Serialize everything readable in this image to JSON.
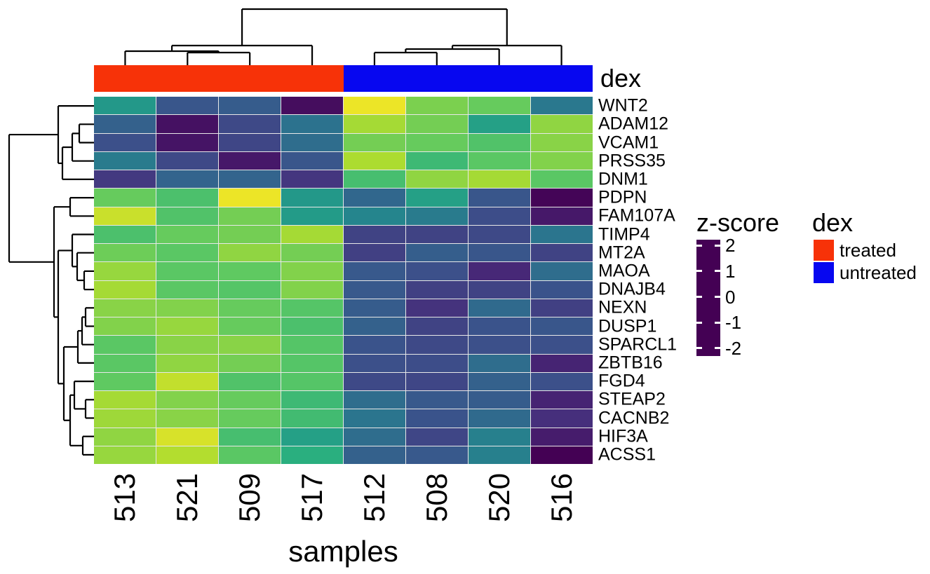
{
  "chart_data": {
    "type": "heatmap",
    "title": "",
    "xlabel": "samples",
    "x_categories": [
      "513",
      "521",
      "509",
      "517",
      "512",
      "508",
      "520",
      "516"
    ],
    "y_categories": [
      "WNT2",
      "ADAM12",
      "VCAM1",
      "PRSS35",
      "DNM1",
      "PDPN",
      "FAM107A",
      "TIMP4",
      "MT2A",
      "MAOA",
      "DNAJB4",
      "NEXN",
      "DUSP1",
      "SPARCL1",
      "ZBTB16",
      "FGD4",
      "STEAP2",
      "CACNB2",
      "HIF3A",
      "ACSS1"
    ],
    "values": [
      [
        0.1,
        -1.1,
        -1.0,
        -2.15,
        2.1,
        1.3,
        1.15,
        -0.5
      ],
      [
        -0.9,
        -2.1,
        -1.3,
        -0.6,
        1.6,
        1.25,
        0.25,
        1.45
      ],
      [
        -1.2,
        -2.05,
        -1.35,
        -0.7,
        1.25,
        1.15,
        0.95,
        1.4
      ],
      [
        -0.45,
        -1.3,
        -2.0,
        -1.1,
        1.65,
        0.75,
        1.05,
        1.35
      ],
      [
        -1.55,
        -0.85,
        -0.85,
        -1.6,
        0.85,
        1.45,
        1.6,
        1.05
      ],
      [
        1.15,
        0.9,
        2.1,
        0.1,
        -0.8,
        0.25,
        -1.1,
        -2.25
      ],
      [
        1.85,
        0.95,
        1.25,
        0.15,
        -0.25,
        -0.45,
        -1.25,
        -2.0
      ],
      [
        0.9,
        1.15,
        1.25,
        1.6,
        -1.4,
        -1.4,
        -1.3,
        -0.55
      ],
      [
        1.2,
        1.05,
        1.45,
        1.25,
        -1.45,
        -0.95,
        -1.1,
        -1.4
      ],
      [
        1.5,
        1.05,
        1.1,
        1.35,
        -1.05,
        -1.2,
        -1.8,
        -0.7
      ],
      [
        1.6,
        1.05,
        1.0,
        1.35,
        -1.05,
        -1.45,
        -1.4,
        -1.15
      ],
      [
        1.4,
        1.35,
        1.15,
        1.0,
        -1.0,
        -1.65,
        -0.75,
        -1.45
      ],
      [
        1.35,
        1.5,
        1.15,
        0.9,
        -0.9,
        -1.4,
        -1.15,
        -1.1
      ],
      [
        1.05,
        1.4,
        1.4,
        1.0,
        -1.15,
        -1.3,
        -1.2,
        -1.2
      ],
      [
        1.05,
        1.45,
        1.25,
        1.0,
        -1.2,
        -1.25,
        -0.7,
        -1.85
      ],
      [
        1.1,
        1.8,
        0.95,
        1.0,
        -1.3,
        -1.35,
        -0.9,
        -1.2
      ],
      [
        1.6,
        1.35,
        1.15,
        0.75,
        -0.7,
        -1.05,
        -1.0,
        -1.85
      ],
      [
        1.55,
        1.4,
        1.15,
        0.8,
        -0.55,
        -1.15,
        -0.75,
        -1.7
      ],
      [
        1.45,
        1.95,
        0.85,
        0.25,
        -0.7,
        -1.35,
        -0.35,
        -1.95
      ],
      [
        1.5,
        1.7,
        1.05,
        0.55,
        -0.9,
        -1.05,
        -0.35,
        -2.3
      ]
    ],
    "color_scale": {
      "palette_name": "viridis",
      "stops": [
        "#440154",
        "#472d7b",
        "#3b528b",
        "#2c728e",
        "#21918c",
        "#28ae80",
        "#5ec962",
        "#addc30",
        "#fde725"
      ],
      "domain": [
        -2.3,
        2.22
      ]
    },
    "colorbar_legend": {
      "title": "z-score",
      "tick_labels": [
        "2",
        "1",
        "0",
        "-1",
        "-2"
      ],
      "tick_values": [
        2,
        1,
        0,
        -1,
        -2
      ]
    },
    "annotation_legend": {
      "title": "dex",
      "items": [
        {
          "label": "treated",
          "color": "#f73208"
        },
        {
          "label": "untreated",
          "color": "#0707f0"
        }
      ]
    },
    "column_annotation": {
      "label": "dex",
      "values": [
        "treated",
        "treated",
        "treated",
        "treated",
        "untreated",
        "untreated",
        "untreated",
        "untreated"
      ],
      "colors": {
        "treated": "#f73208",
        "untreated": "#0707f0"
      }
    },
    "col_dendrogram": {
      "merges": [
        {
          "a": "521",
          "b": "509",
          "h": 75
        },
        {
          "a": "512",
          "b": "508",
          "h": 75
        },
        {
          "a": "513",
          "b": "#0",
          "h": 73
        },
        {
          "a": "#1",
          "b": "520",
          "h": 70
        },
        {
          "a": "#2",
          "b": "517",
          "h": 65
        },
        {
          "a": "#3",
          "b": "516",
          "h": 65
        },
        {
          "a": "#4",
          "b": "#5",
          "h": 13
        }
      ]
    },
    "row_dendrogram": {
      "merges": [
        {
          "a": "ADAM12",
          "b": "VCAM1",
          "h": 113
        },
        {
          "a": "#0",
          "b": "PRSS35",
          "h": 103
        },
        {
          "a": "#1",
          "b": "DNM1",
          "h": 89
        },
        {
          "a": "WNT2",
          "b": "#2",
          "h": 83
        },
        {
          "a": "PDPN",
          "b": "FAM107A",
          "h": 100
        },
        {
          "a": "MAOA",
          "b": "DNAJB4",
          "h": 120
        },
        {
          "a": "MT2A",
          "b": "#5",
          "h": 110
        },
        {
          "a": "TIMP4",
          "b": "#6",
          "h": 103
        },
        {
          "a": "NEXN",
          "b": "DUSP1",
          "h": 122
        },
        {
          "a": "#8",
          "b": "SPARCL1",
          "h": 117
        },
        {
          "a": "#9",
          "b": "ZBTB16",
          "h": 111
        },
        {
          "a": "STEAP2",
          "b": "CACNB2",
          "h": 122
        },
        {
          "a": "FGD4",
          "b": "#11",
          "h": 106
        },
        {
          "a": "HIF3A",
          "b": "ACSS1",
          "h": 118
        },
        {
          "a": "#12",
          "b": "#13",
          "h": 100
        },
        {
          "a": "#10",
          "b": "#14",
          "h": 91
        },
        {
          "a": "#7",
          "b": "#15",
          "h": 83
        },
        {
          "a": "#4",
          "b": "#16",
          "h": 77
        },
        {
          "a": "#3",
          "b": "#17",
          "h": 13
        }
      ]
    }
  }
}
